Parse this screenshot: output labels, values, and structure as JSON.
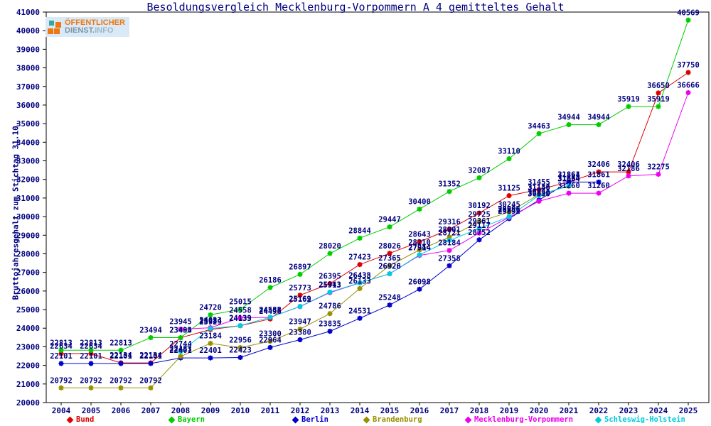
{
  "header": {
    "title": "Besoldungsvergleich Mecklenburg-Vorpommern A 4 gemitteltes Gehalt"
  },
  "logo": {
    "line1": "ÖFFENTLICHER",
    "line2a": "DIENST.",
    "line2b": "INFO",
    "orange": "#ee7711",
    "teal": "#33a8a0"
  },
  "chart_data": {
    "type": "line",
    "title": "Besoldungsvergleich Mecklenburg-Vorpommern A 4 gemitteltes Gehalt",
    "ylabel": "Bruttojahresgehalt zum Stichtag 31.10.",
    "xlabel": "",
    "ylim": [
      20000,
      41000
    ],
    "ytick_step": 1000,
    "grid": false,
    "legend_position": "bottom",
    "label_color": "#000080",
    "years": [
      2004,
      2005,
      2006,
      2007,
      2008,
      2009,
      2010,
      2011,
      2012,
      2013,
      2014,
      2015,
      2016,
      2017,
      2018,
      2019,
      2020,
      2021,
      2022,
      2023,
      2024,
      2025
    ],
    "series": [
      {
        "name": "Bund",
        "color": "#dd0000",
        "values": [
          22634,
          22634,
          22134,
          22134,
          23485,
          23929,
          24133,
          24496,
          25773,
          26395,
          27423,
          28026,
          28643,
          29316,
          30192,
          31125,
          31455,
          31864,
          32406,
          32406,
          36650,
          37750
        ]
      },
      {
        "name": "Bayern",
        "color": "#00cc00",
        "values": [
          22813,
          22813,
          22813,
          23494,
          23494,
          24720,
          25015,
          26186,
          26897,
          28020,
          28844,
          29447,
          30400,
          31352,
          32087,
          33110,
          34463,
          34944,
          34944,
          35919,
          35919,
          40569
        ]
      },
      {
        "name": "Berlin",
        "color": "#0000cc",
        "values": [
          22101,
          22101,
          22101,
          22101,
          22401,
          22401,
          22423,
          22964,
          23380,
          23835,
          24531,
          25248,
          26098,
          27358,
          28752,
          29892,
          30890,
          31861,
          31861,
          null,
          null,
          null
        ]
      },
      {
        "name": "Brandenburg",
        "color": "#999000",
        "values": [
          20792,
          20792,
          20792,
          20792,
          22483,
          23184,
          22956,
          23300,
          23947,
          24786,
          26133,
          27365,
          28210,
          28901,
          29725,
          30245,
          31186,
          31634,
          null,
          null,
          null,
          null
        ]
      },
      {
        "name": "Mecklenburg-Vorpommern",
        "color": "#ee00ee",
        "values": [
          null,
          null,
          null,
          null,
          23945,
          24023,
          24558,
          24583,
          25162,
          25913,
          26433,
          26926,
          27914,
          28184,
          29117,
          29956,
          30830,
          31260,
          31260,
          32186,
          32275,
          36666
        ]
      },
      {
        "name": "Schleswig-Holstein",
        "color": "#00ccdd",
        "values": [
          null,
          null,
          null,
          null,
          22744,
          23984,
          24139,
          24588,
          25169,
          25943,
          26438,
          26928,
          27944,
          28721,
          29361,
          29996,
          31140,
          31664,
          null,
          null,
          null,
          null
        ]
      }
    ]
  }
}
